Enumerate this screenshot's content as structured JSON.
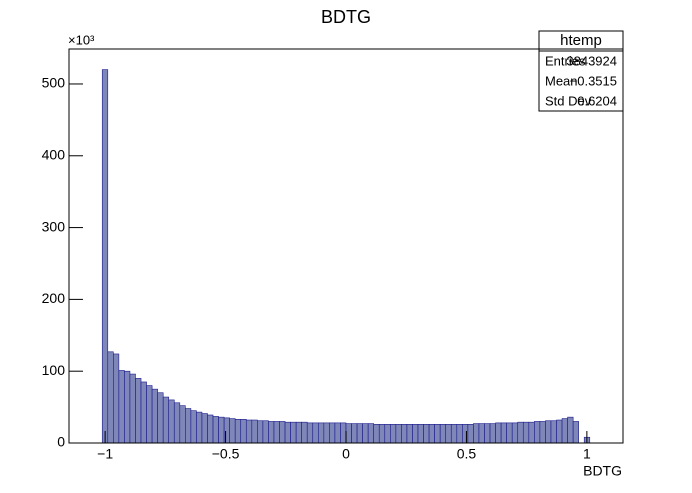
{
  "chart_data": {
    "type": "histogram",
    "title": "BDTG",
    "x_label": "BDTG",
    "y_multiplier": "×10³",
    "bins": [
      -1.012,
      -0.989,
      -0.966,
      -0.943,
      -0.92,
      -0.897,
      -0.874,
      -0.851,
      -0.828,
      -0.805,
      -0.782,
      -0.759,
      -0.736,
      -0.713,
      -0.69,
      -0.667,
      -0.644,
      -0.621,
      -0.598,
      -0.575,
      -0.552,
      -0.529,
      -0.506,
      -0.483,
      -0.46,
      -0.437,
      -0.414,
      -0.391,
      -0.368,
      -0.345,
      -0.322,
      -0.299,
      -0.276,
      -0.253,
      -0.23,
      -0.207,
      -0.184,
      -0.161,
      -0.138,
      -0.115,
      -0.092,
      -0.069,
      -0.046,
      -0.023,
      0,
      0.023,
      0.046,
      0.069,
      0.092,
      0.115,
      0.138,
      0.161,
      0.184,
      0.207,
      0.23,
      0.253,
      0.276,
      0.299,
      0.322,
      0.345,
      0.368,
      0.391,
      0.414,
      0.437,
      0.46,
      0.483,
      0.506,
      0.529,
      0.552,
      0.575,
      0.598,
      0.621,
      0.644,
      0.667,
      0.69,
      0.713,
      0.736,
      0.759,
      0.782,
      0.805,
      0.828,
      0.851,
      0.874,
      0.897,
      0.92,
      0.943,
      0.966,
      0.989,
      1.012
    ],
    "values": [
      520,
      127,
      124,
      101,
      100,
      96,
      90,
      85,
      80,
      75,
      70,
      64,
      60,
      56,
      52,
      48,
      45,
      43,
      41,
      39,
      37,
      36,
      35,
      34,
      33,
      33,
      32,
      32,
      31,
      31,
      30,
      30,
      30,
      29,
      29,
      29,
      29,
      28,
      28,
      28,
      28,
      28,
      28,
      28,
      27,
      27,
      27,
      27,
      27,
      26,
      26,
      26,
      26,
      26,
      26,
      26,
      26,
      26,
      26,
      26,
      26,
      26,
      26,
      26,
      26,
      26,
      26,
      27,
      27,
      27,
      27,
      28,
      28,
      28,
      28,
      29,
      29,
      29,
      30,
      30,
      31,
      31,
      32,
      34,
      36,
      30,
      0,
      8
    ],
    "color": "#7f86b8",
    "line_color": "#1a1a8c",
    "xlim": [
      -1.15,
      1.15
    ],
    "xticks": [
      {
        "value": -1,
        "label": "−1"
      },
      {
        "value": -0.5,
        "label": "−0.5"
      },
      0,
      0.5,
      1
    ],
    "ylim": [
      0,
      548.7
    ],
    "yticks": [
      0,
      100,
      200,
      300,
      400,
      500
    ],
    "stats": {
      "title": "htemp",
      "rows": [
        [
          "Entries",
          "3843924"
        ],
        [
          "Mean",
          "−0.3515"
        ],
        [
          "Std Dev",
          "0.6204"
        ]
      ]
    }
  }
}
